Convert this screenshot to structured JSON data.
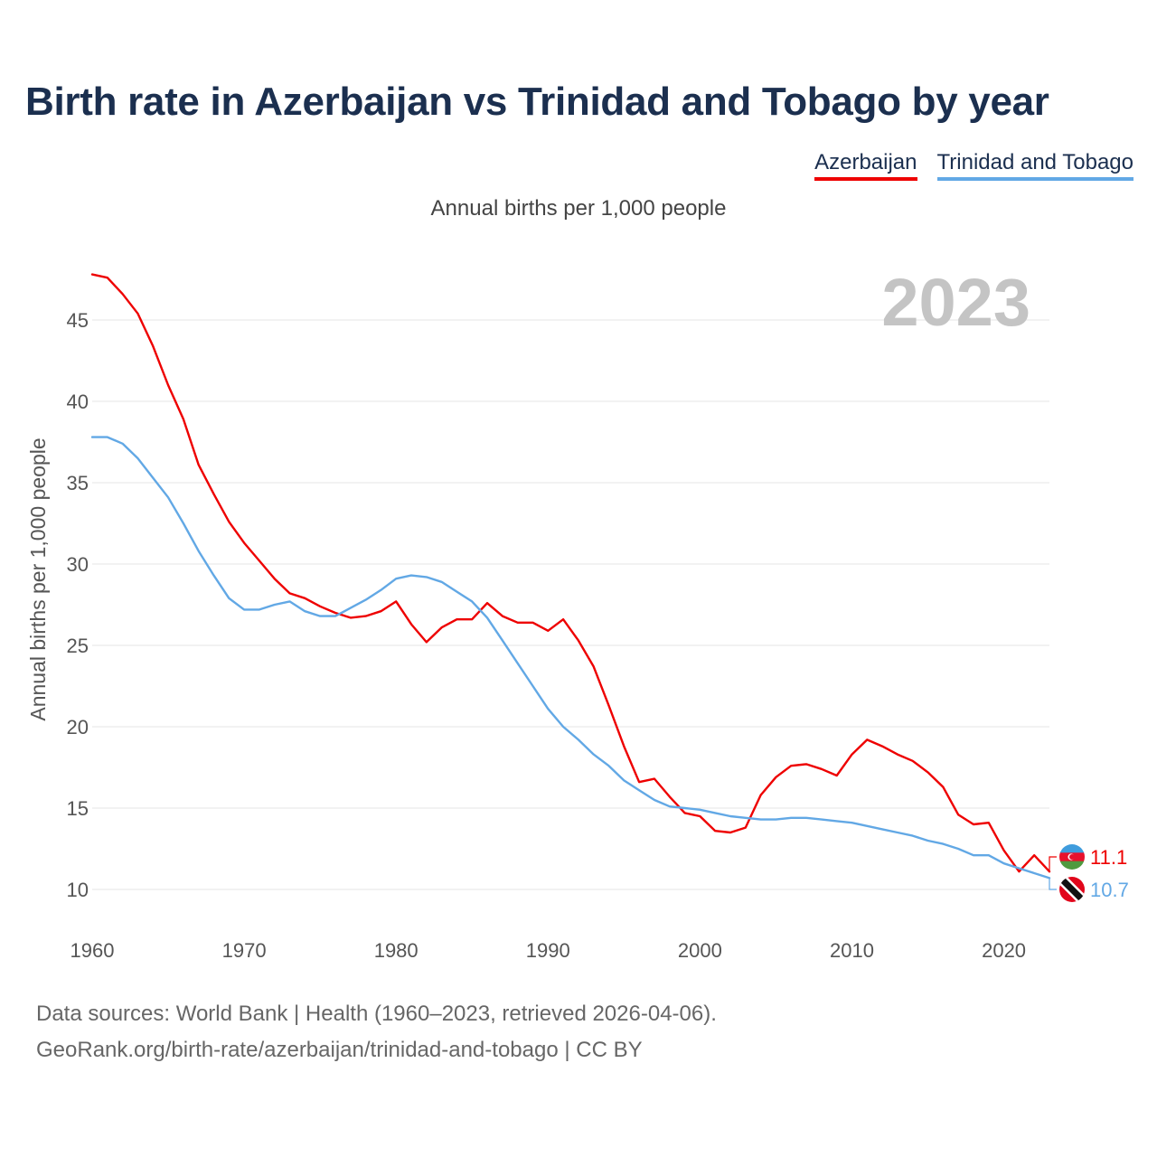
{
  "header": {
    "title": "Birth rate in Azerbaijan vs Trinidad and Tobago by year",
    "subtitle": "Annual births per 1,000 people"
  },
  "legend": [
    {
      "label": "Azerbaijan",
      "color": "#ee0000"
    },
    {
      "label": "Trinidad and Tobago",
      "color": "#62a8e5"
    }
  ],
  "footer": {
    "source_line": "Data sources: World Bank | Health (1960–2023, retrieved 2026-04-06).",
    "url_line": "GeoRank.org/birth-rate/azerbaijan/trinidad-and-tobago | CC BY"
  },
  "chart_data": {
    "type": "line",
    "title": "Birth rate in Azerbaijan vs Trinidad and Tobago by year",
    "subtitle": "Annual births per 1,000 people",
    "xlabel": "",
    "ylabel": "Annual births per 1,000 people",
    "year_watermark": "2023",
    "xlim": [
      1960,
      2023
    ],
    "ylim": [
      9,
      48
    ],
    "x_ticks": [
      1960,
      1970,
      1980,
      1990,
      2000,
      2010,
      2020
    ],
    "y_ticks": [
      10,
      15,
      20,
      25,
      30,
      35,
      40,
      45
    ],
    "grid": true,
    "legend_position": "top-right",
    "x": [
      1960,
      1961,
      1962,
      1963,
      1964,
      1965,
      1966,
      1967,
      1968,
      1969,
      1970,
      1971,
      1972,
      1973,
      1974,
      1975,
      1976,
      1977,
      1978,
      1979,
      1980,
      1981,
      1982,
      1983,
      1984,
      1985,
      1986,
      1987,
      1988,
      1989,
      1990,
      1991,
      1992,
      1993,
      1994,
      1995,
      1996,
      1997,
      1998,
      1999,
      2000,
      2001,
      2002,
      2003,
      2004,
      2005,
      2006,
      2007,
      2008,
      2009,
      2010,
      2011,
      2012,
      2013,
      2014,
      2015,
      2016,
      2017,
      2018,
      2019,
      2020,
      2021,
      2022,
      2023
    ],
    "series": [
      {
        "name": "Azerbaijan",
        "color": "#ee0000",
        "end_label": "11.1",
        "values": [
          47.8,
          47.6,
          46.6,
          45.4,
          43.4,
          41.0,
          38.9,
          36.1,
          34.3,
          32.6,
          31.3,
          30.2,
          29.1,
          28.2,
          27.9,
          27.4,
          27.0,
          26.7,
          26.8,
          27.1,
          27.7,
          26.3,
          25.2,
          26.1,
          26.6,
          26.6,
          27.6,
          26.8,
          26.4,
          26.4,
          25.9,
          26.6,
          25.3,
          23.7,
          21.3,
          18.8,
          16.6,
          16.8,
          15.7,
          14.7,
          14.5,
          13.6,
          13.5,
          13.8,
          15.8,
          16.9,
          17.6,
          17.7,
          17.4,
          17.0,
          18.3,
          19.2,
          18.8,
          18.3,
          17.9,
          17.2,
          16.3,
          14.6,
          14.0,
          14.1,
          12.4,
          11.1,
          12.1,
          11.1
        ]
      },
      {
        "name": "Trinidad and Tobago",
        "color": "#62a8e5",
        "end_label": "10.7",
        "values": [
          37.8,
          37.8,
          37.4,
          36.5,
          35.3,
          34.1,
          32.5,
          30.8,
          29.3,
          27.9,
          27.2,
          27.2,
          27.5,
          27.7,
          27.1,
          26.8,
          26.8,
          27.3,
          27.8,
          28.4,
          29.1,
          29.3,
          29.2,
          28.9,
          28.3,
          27.7,
          26.7,
          25.3,
          23.9,
          22.5,
          21.1,
          20.0,
          19.2,
          18.3,
          17.6,
          16.7,
          16.1,
          15.5,
          15.1,
          15.0,
          14.9,
          14.7,
          14.5,
          14.4,
          14.3,
          14.3,
          14.4,
          14.4,
          14.3,
          14.2,
          14.1,
          13.9,
          13.7,
          13.5,
          13.3,
          13.0,
          12.8,
          12.5,
          12.1,
          12.1,
          11.6,
          11.3,
          11.0,
          10.7
        ]
      }
    ]
  }
}
